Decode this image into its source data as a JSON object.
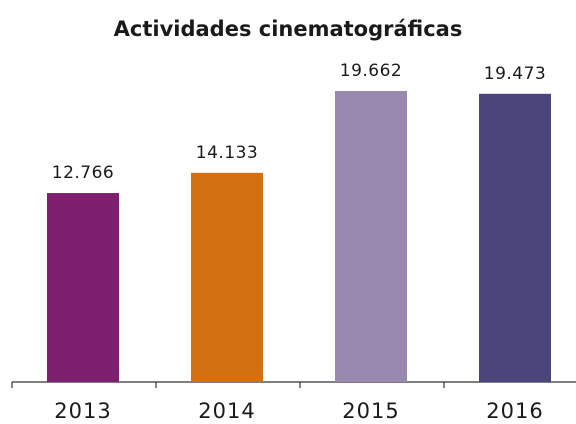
{
  "chart_data": {
    "type": "bar",
    "title": "Actividades cinematográficas",
    "categories": [
      "2013",
      "2014",
      "2015",
      "2016"
    ],
    "values": [
      12766,
      14133,
      19662,
      19473
    ],
    "value_labels": [
      "12.766",
      "14.133",
      "19.662",
      "19.473"
    ],
    "colors": [
      "#7d1f6e",
      "#d37112",
      "#9a89ae",
      "#4a457b"
    ]
  }
}
